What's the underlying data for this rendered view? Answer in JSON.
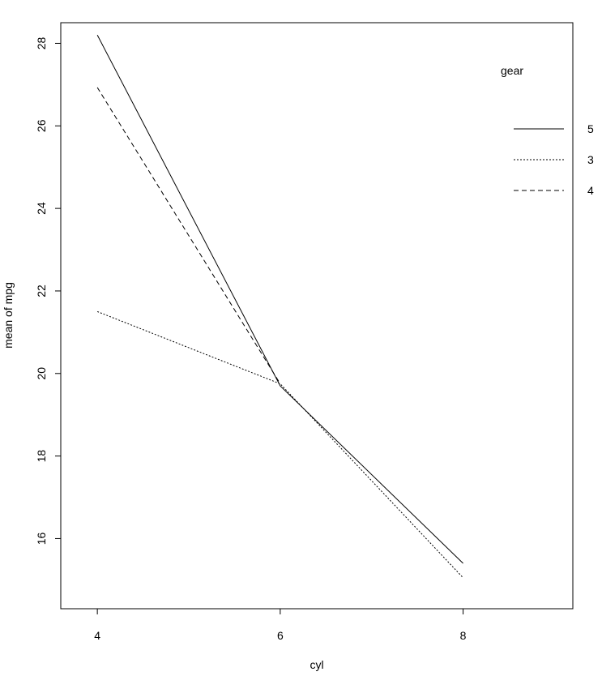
{
  "chart_data": {
    "type": "line",
    "xlabel": "cyl",
    "ylabel": "mean of  mpg",
    "x": [
      4,
      6,
      8
    ],
    "x_ticks": [
      4,
      6,
      8
    ],
    "xlim": [
      3.6,
      9.2
    ],
    "y_ticks": [
      16,
      18,
      20,
      22,
      24,
      26,
      28
    ],
    "ylim": [
      14.3,
      28.5
    ],
    "grid": false,
    "legend": {
      "title": "gear",
      "placement": "top-right"
    },
    "series": [
      {
        "name": "5",
        "values": [
          28.2,
          19.7,
          15.4
        ],
        "line_style": "solid",
        "color": "#000000"
      },
      {
        "name": "3",
        "values": [
          21.5,
          19.75,
          15.05
        ],
        "line_style": "dotted",
        "color": "#000000"
      },
      {
        "name": "4",
        "values": [
          26.93,
          19.75,
          null
        ],
        "line_style": "dashed",
        "color": "#000000"
      }
    ]
  }
}
